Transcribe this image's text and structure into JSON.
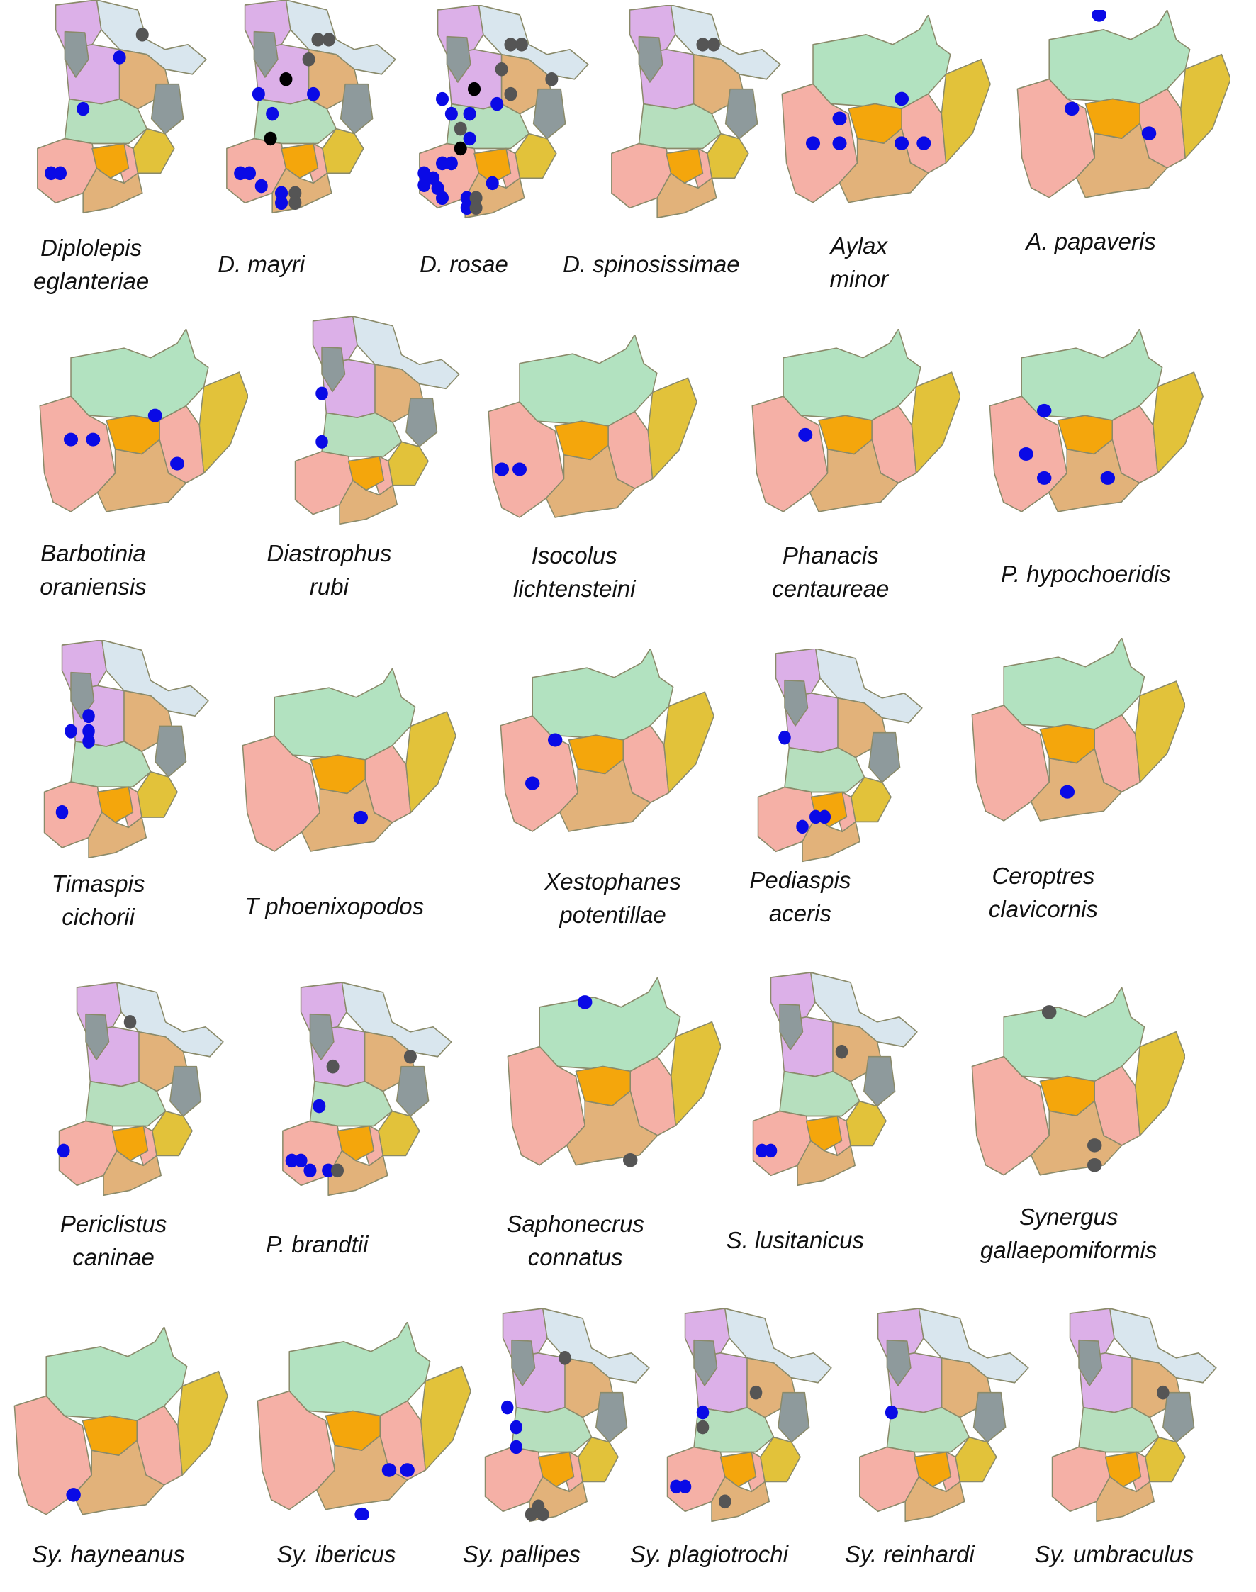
{
  "colors": {
    "record_blue": "#0a0ae6",
    "record_gray": "#555555",
    "record_black": "#000000",
    "purple": "#dcb0e8",
    "light_blue": "#d9e6ee",
    "gray_region": "#8e9a9c",
    "tan": "#e2b27a",
    "light_green": "#b6dfbe",
    "yellow": "#e2c23a",
    "pink": "#f5b0a6",
    "orange": "#f4a60c",
    "green_wide": "#b2e2c0"
  },
  "panels": [
    {
      "label_lines": [
        "Diplolepis",
        "eglanteriae"
      ],
      "map": "tall"
    },
    {
      "label_lines": [
        "D. mayri"
      ],
      "map": "tall"
    },
    {
      "label_lines": [
        "D. rosae"
      ],
      "map": "tall"
    },
    {
      "label_lines": [
        "D. spinosissimae"
      ],
      "map": "tall"
    },
    {
      "label_lines": [
        "Aylax",
        "minor"
      ],
      "map": "wide"
    },
    {
      "label_lines": [
        "A. papaveris"
      ],
      "map": "wide"
    },
    {
      "label_lines": [
        "Barbotinia",
        "oraniensis"
      ],
      "map": "wide"
    },
    {
      "label_lines": [
        "Diastrophus",
        "rubi"
      ],
      "map": "tall"
    },
    {
      "label_lines": [
        "Isocolus",
        "lichtensteini"
      ],
      "map": "wide"
    },
    {
      "label_lines": [
        "Phanacis",
        "centaureae"
      ],
      "map": "wide"
    },
    {
      "label_lines": [
        "P. hypochoeridis"
      ],
      "map": "wide"
    },
    {
      "label_lines": [
        "Timaspis",
        "cichorii"
      ],
      "map": "tall"
    },
    {
      "label_lines": [
        "T phoenixopodos"
      ],
      "map": "wide"
    },
    {
      "label_lines": [
        "Xestophanes",
        "potentillae"
      ],
      "map": "wide"
    },
    {
      "label_lines": [
        "Pediaspis",
        "aceris"
      ],
      "map": "tall"
    },
    {
      "label_lines": [
        "Ceroptres",
        "clavicornis"
      ],
      "map": "wide"
    },
    {
      "label_lines": [
        "Periclistus",
        "caninae"
      ],
      "map": "tall"
    },
    {
      "label_lines": [
        "P. brandtii"
      ],
      "map": "tall"
    },
    {
      "label_lines": [
        "Saphonecrus",
        "connatus"
      ],
      "map": "wide"
    },
    {
      "label_lines": [
        "S. lusitanicus"
      ],
      "map": "tall"
    },
    {
      "label_lines": [
        "Synergus",
        "gallaepomiformis"
      ],
      "map": "wide"
    },
    {
      "label_lines": [
        "Sy. hayneanus"
      ],
      "map": "wide"
    },
    {
      "label_lines": [
        "Sy. ibericus"
      ],
      "map": "wide"
    },
    {
      "label_lines": [
        "Sy. pallipes"
      ],
      "map": "tall"
    },
    {
      "label_lines": [
        "Sy. plagiotrochi"
      ],
      "map": "tall"
    },
    {
      "label_lines": [
        "Sy. reinhardi"
      ],
      "map": "tall"
    },
    {
      "label_lines": [
        "Sy. umbraculus"
      ],
      "map": "tall"
    }
  ]
}
